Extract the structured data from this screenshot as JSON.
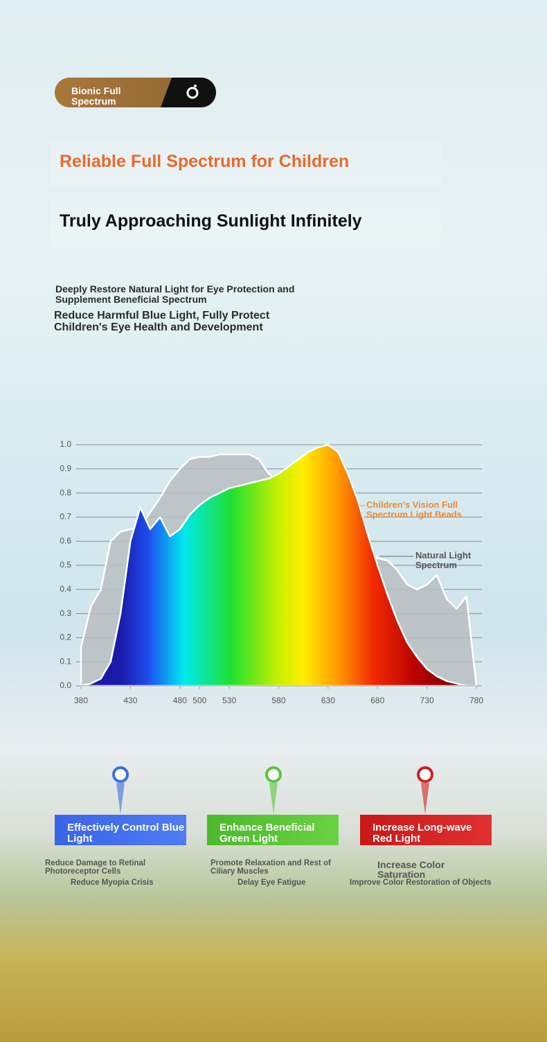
{
  "header": {
    "badge": "Bionic Full Spectrum",
    "title": "Reliable Full Spectrum for Children",
    "subtitle": "Truly Approaching Sunlight Infinitely",
    "intro": [
      "Deeply Restore Natural Light for Eye Protection and Supplement Beneficial Spectrum",
      "Reduce Harmful Blue Light, Fully Protect Children's Eye Health and Development"
    ]
  },
  "chart_data": {
    "type": "area",
    "x": [
      380,
      390,
      400,
      410,
      420,
      430,
      440,
      450,
      460,
      470,
      480,
      490,
      500,
      510,
      520,
      530,
      540,
      550,
      560,
      570,
      580,
      590,
      600,
      610,
      620,
      630,
      640,
      650,
      660,
      670,
      680,
      690,
      700,
      710,
      720,
      730,
      740,
      750,
      760,
      770,
      780
    ],
    "series": [
      {
        "name": "Natural Light Spectrum",
        "color": "#b9bec2",
        "values": [
          0.16,
          0.33,
          0.4,
          0.6,
          0.64,
          0.65,
          0.66,
          0.72,
          0.78,
          0.85,
          0.9,
          0.94,
          0.95,
          0.95,
          0.96,
          0.96,
          0.96,
          0.96,
          0.94,
          0.88,
          0.85,
          0.84,
          0.8,
          0.76,
          0.72,
          0.68,
          0.64,
          0.6,
          0.57,
          0.55,
          0.53,
          0.52,
          0.48,
          0.42,
          0.4,
          0.42,
          0.46,
          0.36,
          0.32,
          0.37,
          0
        ]
      },
      {
        "name": "Children's Vision Full Spectrum Light Beads",
        "color": "#f0892e",
        "values": [
          0,
          0.01,
          0.03,
          0.1,
          0.3,
          0.6,
          0.74,
          0.65,
          0.7,
          0.62,
          0.65,
          0.71,
          0.75,
          0.78,
          0.8,
          0.82,
          0.83,
          0.84,
          0.85,
          0.86,
          0.88,
          0.91,
          0.94,
          0.97,
          0.99,
          1.0,
          0.97,
          0.88,
          0.77,
          0.63,
          0.5,
          0.38,
          0.27,
          0.18,
          0.12,
          0.07,
          0.04,
          0.02,
          0.01,
          0,
          0
        ]
      }
    ],
    "xlim": [
      380,
      780
    ],
    "xticks": [
      380,
      430,
      480,
      500,
      530,
      580,
      630,
      680,
      730,
      780
    ],
    "ylim": [
      0,
      1
    ],
    "yticks": [
      {
        "value": 0,
        "label": "0.0"
      },
      0.1,
      0.2,
      0.3,
      0.4,
      0.5,
      0.6,
      0.7,
      0.8,
      0.9,
      {
        "value": 1,
        "label": "1.0"
      }
    ],
    "grid": true
  },
  "features": [
    {
      "title": "Effectively Control Blue Light",
      "lines": [
        "Reduce Damage to Retinal Photoreceptor Cells",
        "Reduce Myopia Crisis"
      ]
    },
    {
      "title": "Enhance Beneficial Green Light",
      "lines": [
        "Promote Relaxation and Rest of Ciliary Muscles",
        "Delay Eye Fatigue"
      ]
    },
    {
      "title": "Increase Long-wave Red Light",
      "lines": [
        "Increase Color Saturation",
        "Improve Color Restoration of Objects"
      ]
    }
  ]
}
